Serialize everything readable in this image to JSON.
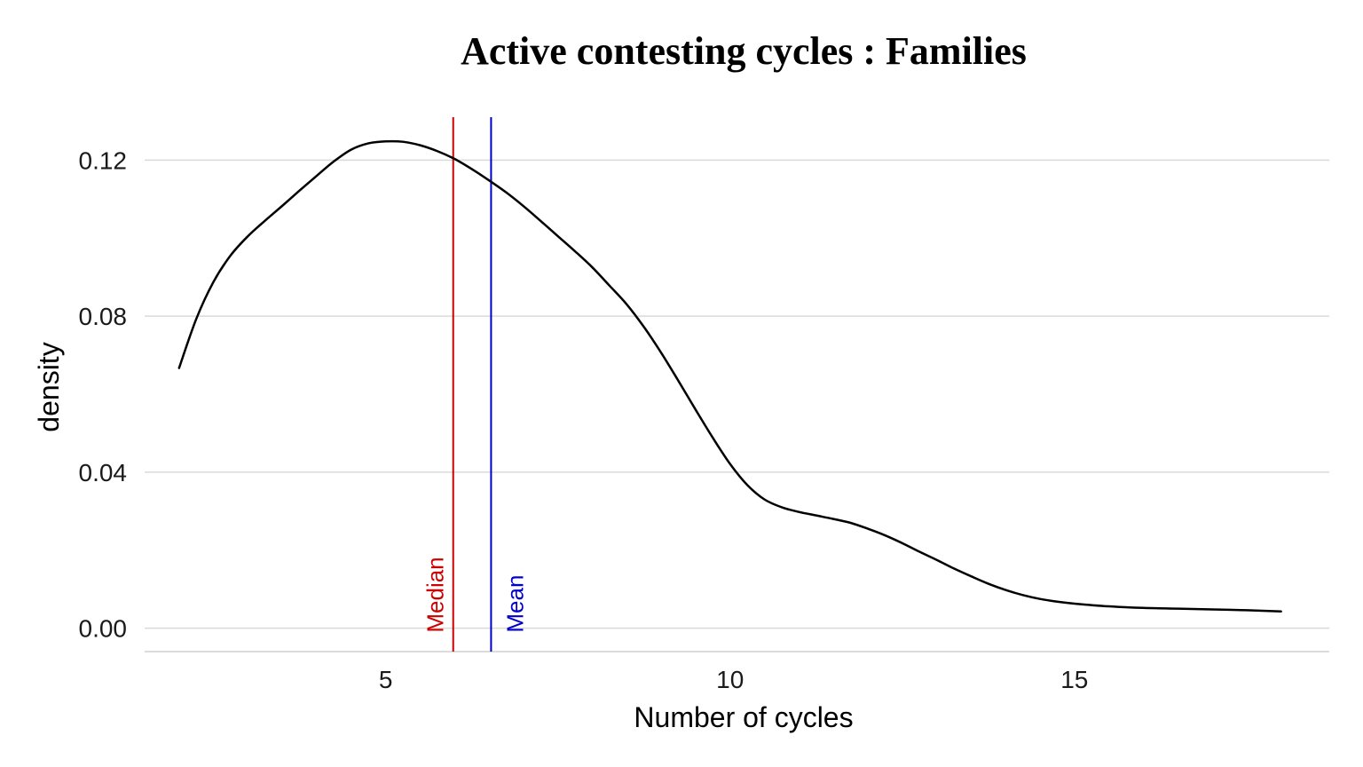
{
  "chart_data": {
    "type": "line",
    "title": "Active contesting cycles : Families",
    "xlabel": "Number of cycles",
    "ylabel": "density",
    "xlim": [
      1.5,
      18.7
    ],
    "ylim": [
      -0.006,
      0.131
    ],
    "x_ticks": [
      {
        "value": 5,
        "label": "5"
      },
      {
        "value": 10,
        "label": "10"
      },
      {
        "value": 15,
        "label": "15"
      }
    ],
    "y_ticks": [
      {
        "value": 0,
        "label": "0.00"
      },
      {
        "value": 0.04,
        "label": "0.04"
      },
      {
        "value": 0.08,
        "label": "0.08"
      },
      {
        "value": 0.12,
        "label": "0.12"
      }
    ],
    "grid": {
      "horizontal": true,
      "vertical": false
    },
    "series": [
      {
        "line_color": "#000000",
        "x": [
          2.0,
          2.25,
          2.5,
          2.75,
          3.0,
          3.25,
          3.5,
          3.75,
          4.0,
          4.25,
          4.5,
          4.75,
          5.0,
          5.25,
          5.5,
          5.75,
          6.0,
          6.25,
          6.5,
          6.75,
          7.0,
          7.25,
          7.5,
          7.75,
          8.0,
          8.25,
          8.5,
          8.75,
          9.0,
          9.25,
          9.5,
          9.75,
          10.0,
          10.25,
          10.5,
          10.75,
          11.0,
          11.25,
          11.5,
          11.75,
          12.0,
          12.25,
          12.5,
          12.75,
          13.0,
          13.25,
          13.5,
          13.75,
          14.0,
          14.25,
          14.5,
          14.75,
          15.0,
          15.5,
          16.0,
          16.5,
          17.0,
          17.5,
          18.0
        ],
        "y": [
          0.0667,
          0.0793,
          0.0888,
          0.0956,
          0.1005,
          0.1045,
          0.1083,
          0.1122,
          0.116,
          0.1197,
          0.1227,
          0.1243,
          0.1248,
          0.1247,
          0.1238,
          0.1223,
          0.1203,
          0.1177,
          0.1148,
          0.1117,
          0.1082,
          0.1044,
          0.1005,
          0.0966,
          0.0925,
          0.0878,
          0.083,
          0.0772,
          0.0706,
          0.0634,
          0.056,
          0.0488,
          0.0421,
          0.0367,
          0.033,
          0.031,
          0.0298,
          0.0289,
          0.028,
          0.027,
          0.0255,
          0.0238,
          0.0218,
          0.0196,
          0.0175,
          0.0153,
          0.0133,
          0.0114,
          0.0098,
          0.0085,
          0.0075,
          0.0068,
          0.0063,
          0.0056,
          0.0052,
          0.005,
          0.0048,
          0.0046,
          0.0043
        ]
      }
    ],
    "reference_lines": [
      {
        "label": "Median",
        "x": 5.98,
        "color": "#cc0000"
      },
      {
        "label": "Mean",
        "x": 6.53,
        "color": "#0000cc"
      }
    ]
  }
}
